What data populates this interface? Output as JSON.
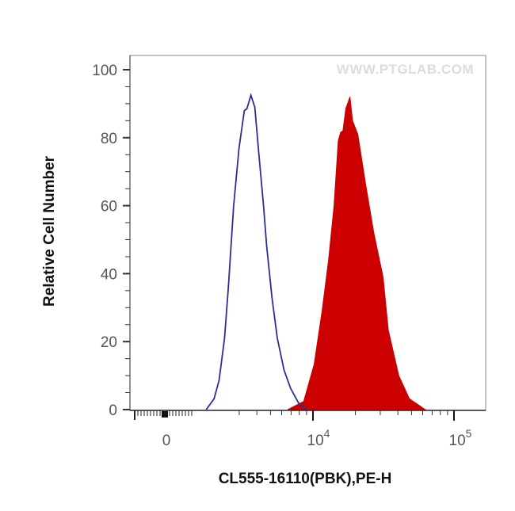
{
  "chart_data": {
    "type": "area",
    "title": "",
    "xlabel": "CL555-16110(PBK),PE-H",
    "ylabel": "Relative Cell Number",
    "x_scale": "biexponential (linear near 0, log above)",
    "ylim": [
      0,
      100
    ],
    "x_tick_labels": [
      {
        "value": 0,
        "base": "0",
        "exp": ""
      },
      {
        "value": 10000,
        "base": "10",
        "exp": "4"
      },
      {
        "value": 100000,
        "base": "10",
        "exp": "5"
      }
    ],
    "y_ticks": [
      0,
      20,
      40,
      60,
      80,
      100
    ],
    "grid": false,
    "legend": "none",
    "watermark": "WWW.PTGLAB.COM",
    "series": [
      {
        "style": "outline",
        "color": "#2a2f95",
        "x": [
          1750,
          1990,
          2160,
          2360,
          2520,
          2740,
          2990,
          3260,
          3400,
          3630,
          3870,
          4130,
          4460,
          4700,
          5130,
          5590,
          6230,
          6930,
          7890,
          8980
        ],
        "y": [
          0,
          3.2,
          8.6,
          21,
          36.6,
          60,
          77,
          88,
          88.5,
          92.5,
          89,
          75.5,
          60,
          48,
          32.7,
          21,
          11.7,
          6.3,
          2,
          0
        ]
      },
      {
        "style": "filled",
        "color": "#cc0000",
        "x": [
          6640,
          8590,
          10200,
          11600,
          12900,
          14100,
          15100,
          15700,
          16300,
          17100,
          18300,
          19100,
          20800,
          23700,
          27000,
          31400,
          34200,
          40600,
          48300,
          62500
        ],
        "y": [
          0,
          2.4,
          13.3,
          29,
          44,
          60,
          79,
          81.6,
          82,
          88.6,
          92,
          85,
          81,
          66,
          52,
          39,
          23.4,
          10,
          3.2,
          0
        ]
      }
    ]
  }
}
